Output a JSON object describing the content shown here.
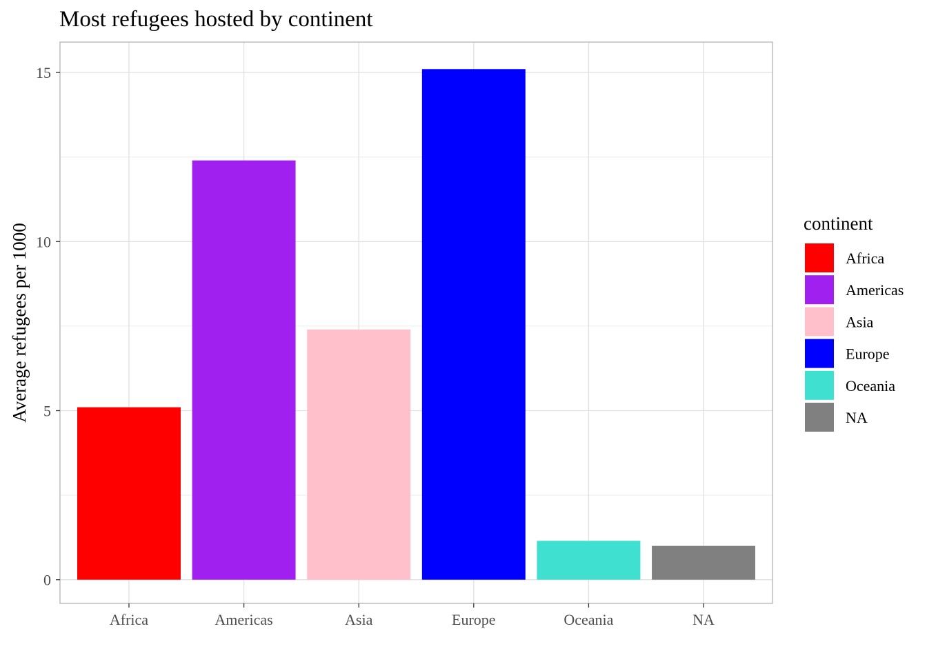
{
  "chart_data": {
    "type": "bar",
    "title": "Most refugees hosted by continent",
    "xlabel": "",
    "ylabel": "Average refugees per 1000",
    "categories": [
      "Africa",
      "Americas",
      "Asia",
      "Europe",
      "Oceania",
      "NA"
    ],
    "values": [
      5.1,
      12.4,
      7.4,
      15.1,
      1.15,
      1.0
    ],
    "colors": [
      "#FF0000",
      "#A020F0",
      "#FFC0CB",
      "#0000FF",
      "#40E0D0",
      "#808080"
    ],
    "ylim": [
      -0.7,
      15.9
    ],
    "yticks": [
      0,
      5,
      10,
      15
    ],
    "grid": true,
    "legend": {
      "title": "continent",
      "position": "right",
      "entries": [
        "Africa",
        "Americas",
        "Asia",
        "Europe",
        "Oceania",
        "NA"
      ]
    }
  }
}
